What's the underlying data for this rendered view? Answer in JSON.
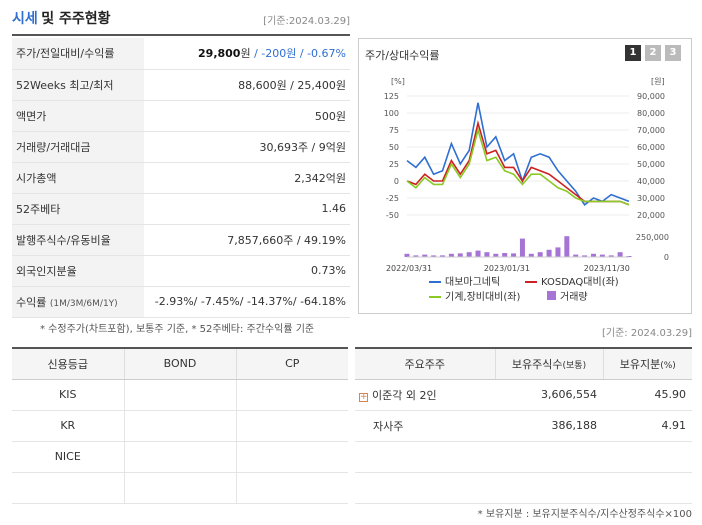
{
  "header": {
    "title_a": "시세",
    "title_b": "및 주주현황",
    "date": "[기준:2024.03.29]"
  },
  "quote_rows": [
    {
      "label": "주가/전일대비/수익률",
      "value_main": "29,800",
      "value_unit": "원",
      "value_change": " / -200원 / -0.67%"
    },
    {
      "label": "52Weeks 최고/최저",
      "value": "88,600원 / 25,400원"
    },
    {
      "label": "액면가",
      "value": "500원"
    },
    {
      "label": "거래량/거래대금",
      "value": "30,693주 / 9억원"
    },
    {
      "label": "시가총액",
      "value": "2,342억원"
    },
    {
      "label": "52주베타",
      "value": "1.46"
    },
    {
      "label": "발행주식수/유동비율",
      "value": "7,857,660주 / 49.19%"
    },
    {
      "label": "외국인지분율",
      "value": "0.73%"
    },
    {
      "label": "수익률",
      "label_small": "(1M/3M/6M/1Y)",
      "value": "-2.93%/ -7.45%/ -14.37%/ -64.18%"
    }
  ],
  "note1": "* 수정주가(차트포함), 보통주 기준, * 52주베타: 주간수익률 기준",
  "chart_panel": {
    "title": "주가/상대수익률",
    "tabs": [
      "1",
      "2",
      "3"
    ]
  },
  "chart_data": {
    "type": "line",
    "left_axis_unit": "[%]",
    "right_axis_unit": "[원]",
    "left_ticks": [
      125,
      100,
      75,
      50,
      25,
      0,
      -25,
      -50
    ],
    "right_ticks": [
      "90,000",
      "80,000",
      "70,000",
      "60,000",
      "50,000",
      "40,000",
      "30,000",
      "20,000"
    ],
    "volume_ticks": [
      "250,000",
      "0"
    ],
    "x_labels": [
      "2022/03/31",
      "2023/01/31",
      "2023/11/30"
    ],
    "series": [
      {
        "name": "대보마그네틱",
        "color": "#2f6fd1",
        "values": [
          30,
          20,
          35,
          10,
          15,
          55,
          25,
          45,
          115,
          50,
          65,
          30,
          40,
          0,
          35,
          40,
          35,
          15,
          0,
          -15,
          -35,
          -25,
          -30,
          -20,
          -25,
          -30
        ]
      },
      {
        "name": "KOSDAQ대비(좌)",
        "color": "#cc2222",
        "values": [
          0,
          -5,
          10,
          0,
          0,
          30,
          10,
          30,
          85,
          40,
          45,
          20,
          20,
          0,
          20,
          15,
          10,
          0,
          -10,
          -20,
          -30,
          -30,
          -30,
          -30,
          -30,
          -35
        ]
      },
      {
        "name": "기계,장비대비(좌)",
        "color": "#8ac926",
        "values": [
          0,
          -10,
          5,
          -5,
          -5,
          25,
          5,
          25,
          75,
          30,
          35,
          15,
          10,
          -5,
          10,
          10,
          0,
          -10,
          -15,
          -25,
          -30,
          -30,
          -30,
          -30,
          -30,
          -35
        ]
      }
    ],
    "volume": {
      "name": "거래량",
      "color": "#a574d4",
      "values": [
        40000,
        20000,
        30000,
        20000,
        20000,
        40000,
        45000,
        60000,
        80000,
        60000,
        40000,
        50000,
        45000,
        230000,
        40000,
        60000,
        90000,
        120000,
        260000,
        30000,
        20000,
        40000,
        30000,
        20000,
        60000,
        10000
      ]
    }
  },
  "date2": "[기준: 2024.03.29]",
  "credit": {
    "headers": [
      "신용등급",
      "BOND",
      "CP"
    ],
    "rows": [
      [
        "KIS",
        "",
        ""
      ],
      [
        "KR",
        "",
        ""
      ],
      [
        "NICE",
        "",
        ""
      ],
      [
        "",
        "",
        ""
      ]
    ]
  },
  "holders": {
    "headers": [
      "주요주주",
      "보유주식수",
      "(보통)",
      "보유지분",
      "(%)"
    ],
    "rows": [
      {
        "name": "이준각 외 2인",
        "shares": "3,606,554",
        "pct": "45.90",
        "expand": "+"
      },
      {
        "name": "자사주",
        "shares": "386,188",
        "pct": "4.91",
        "expand": ""
      },
      {
        "name": "",
        "shares": "",
        "pct": "",
        "expand": ""
      },
      {
        "name": "",
        "shares": "",
        "pct": "",
        "expand": ""
      }
    ]
  },
  "note2": "* 보유지분 : 보유지분주식수/지수산정주식수×100"
}
